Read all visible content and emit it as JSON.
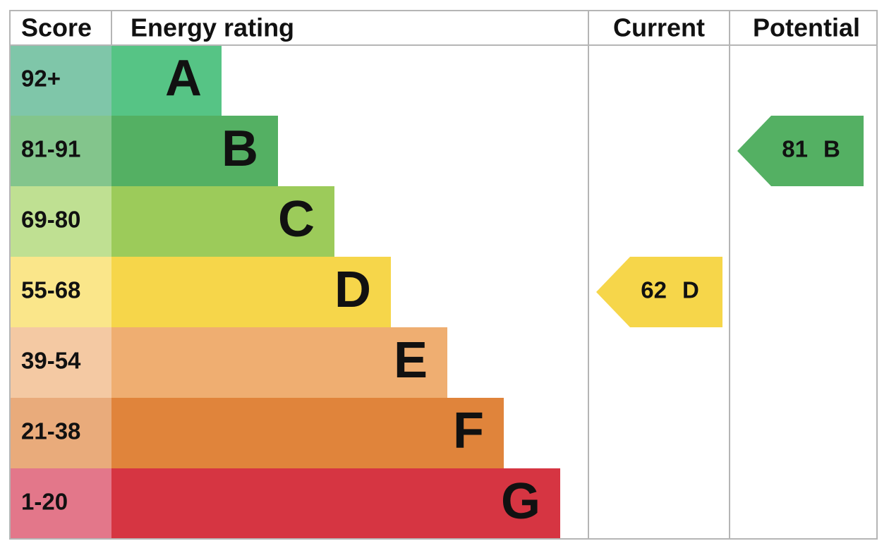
{
  "header": {
    "score": "Score",
    "rating": "Energy rating",
    "current": "Current",
    "potential": "Potential"
  },
  "bands": [
    {
      "score": "92+",
      "letter": "A",
      "color": "#56c485",
      "score_color": "#7fc6a9"
    },
    {
      "score": "81-91",
      "letter": "B",
      "color": "#54b063",
      "score_color": "#83c58c"
    },
    {
      "score": "69-80",
      "letter": "C",
      "color": "#9ccb5a",
      "score_color": "#bfe092"
    },
    {
      "score": "55-68",
      "letter": "D",
      "color": "#f6d64a",
      "score_color": "#fae68a"
    },
    {
      "score": "39-54",
      "letter": "E",
      "color": "#efae71",
      "score_color": "#f4c9a3"
    },
    {
      "score": "21-38",
      "letter": "F",
      "color": "#e0843b",
      "score_color": "#e9ab7b"
    },
    {
      "score": "1-20",
      "letter": "G",
      "color": "#d63542",
      "score_color": "#e3778a"
    }
  ],
  "current": {
    "value": 62,
    "letter": "D"
  },
  "potential": {
    "value": 81,
    "letter": "B"
  }
}
